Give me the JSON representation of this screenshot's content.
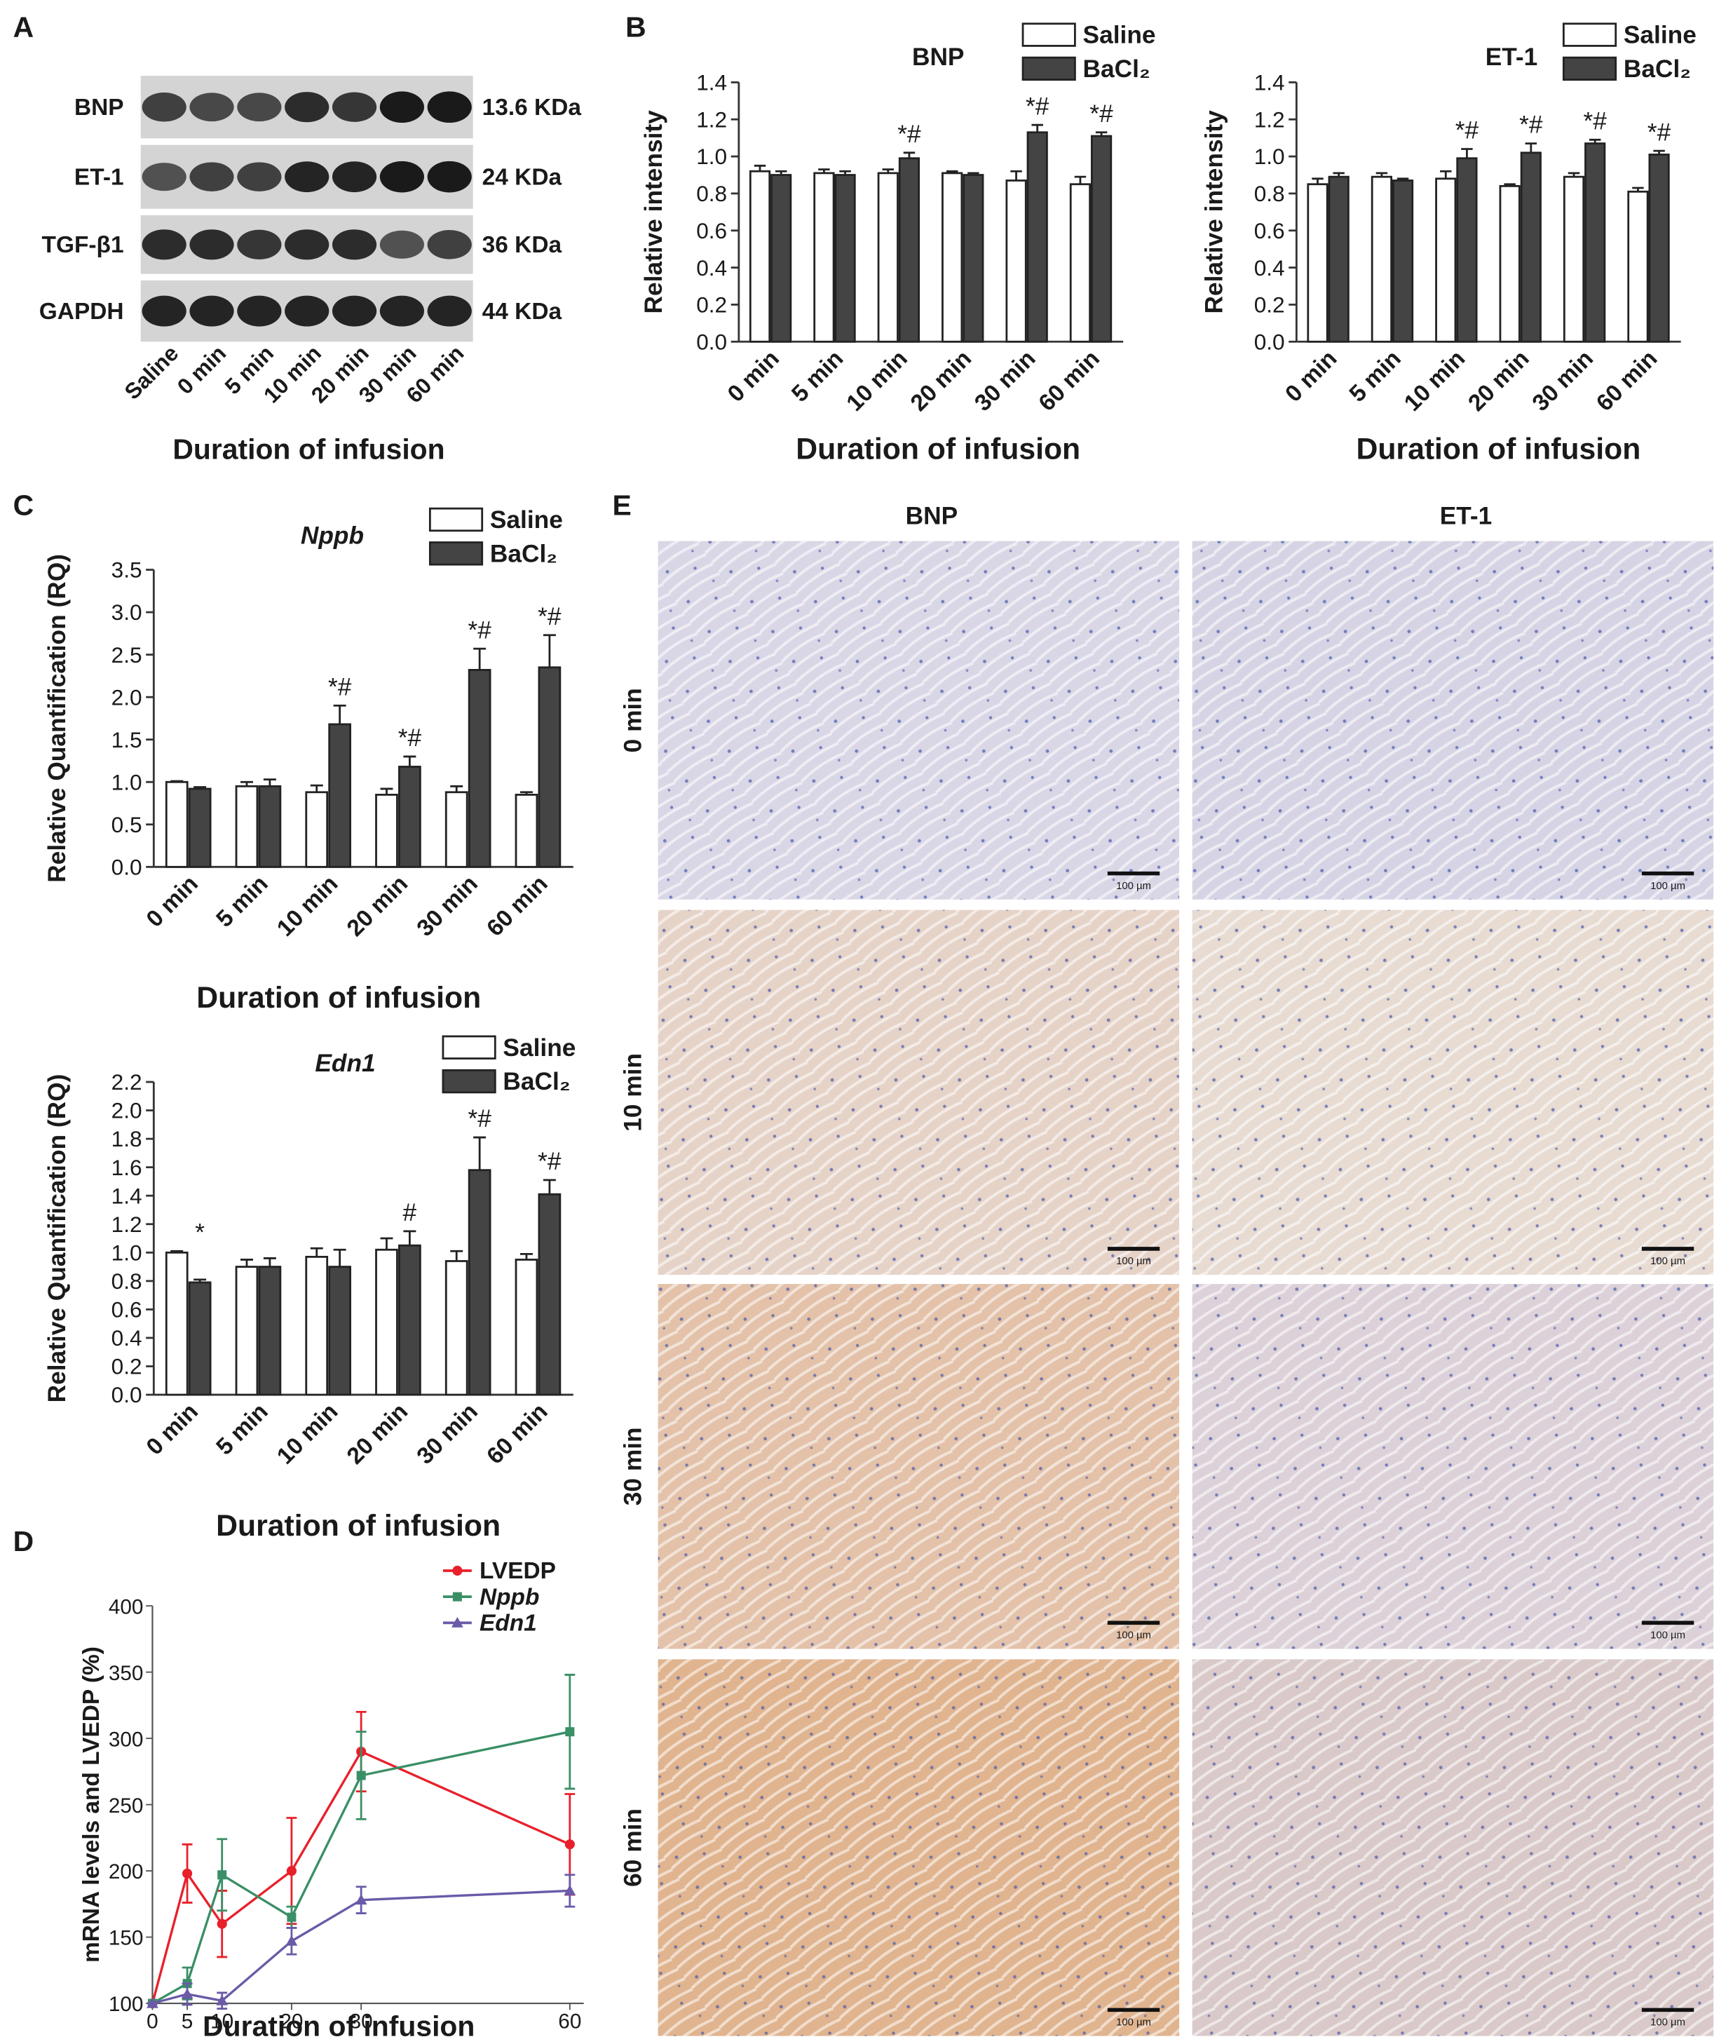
{
  "panel_labels": [
    "A",
    "B",
    "C",
    "D",
    "E"
  ],
  "blot": {
    "proteins": [
      {
        "name": "BNP",
        "size": "13.6 KDa"
      },
      {
        "name": "ET-1",
        "size": "24 KDa"
      },
      {
        "name": "TGF-β1",
        "size": "36 KDa"
      },
      {
        "name": "GAPDH",
        "size": "44 KDa"
      }
    ],
    "lanes": [
      "Saline",
      "0 min",
      "5 min",
      "10 min",
      "20 min",
      "30 min",
      "60 min"
    ],
    "xlabel": "Duration of infusion"
  },
  "chart_data": [
    {
      "type": "bar",
      "title": "BNP",
      "ylabel": "Relative intensity",
      "xlabel": "Duration of infusion",
      "categories": [
        "0 min",
        "5 min",
        "10 min",
        "20 min",
        "30 min",
        "60 min"
      ],
      "series": [
        {
          "name": "Saline",
          "color": "#ffffff",
          "values": [
            0.92,
            0.91,
            0.91,
            0.91,
            0.87,
            0.85
          ],
          "errors": [
            0.03,
            0.02,
            0.02,
            0.01,
            0.05,
            0.04
          ]
        },
        {
          "name": "BaCl₂",
          "color": "#444444",
          "values": [
            0.9,
            0.9,
            0.99,
            0.9,
            1.13,
            1.11
          ],
          "errors": [
            0.02,
            0.02,
            0.03,
            0.01,
            0.04,
            0.02
          ]
        }
      ],
      "ylim": [
        0,
        1.4
      ],
      "yticks": [
        {
          "value": 0,
          "label": "0.0"
        },
        0.2,
        0.4,
        0.6,
        0.8,
        {
          "value": 1,
          "label": "1.0"
        },
        1.2,
        1.4
      ],
      "annotations": [
        {
          "category": "10 min",
          "text": "*#"
        },
        {
          "category": "30 min",
          "text": "*#"
        },
        {
          "category": "60 min",
          "text": "*#"
        }
      ]
    },
    {
      "type": "bar",
      "title": "ET-1",
      "ylabel": "Relative intensity",
      "xlabel": "Duration of infusion",
      "categories": [
        "0 min",
        "5 min",
        "10 min",
        "20 min",
        "30 min",
        "60 min"
      ],
      "series": [
        {
          "name": "Saline",
          "color": "#ffffff",
          "values": [
            0.85,
            0.89,
            0.88,
            0.84,
            0.89,
            0.81
          ],
          "errors": [
            0.03,
            0.02,
            0.04,
            0.01,
            0.02,
            0.02
          ]
        },
        {
          "name": "BaCl₂",
          "color": "#444444",
          "values": [
            0.89,
            0.87,
            0.99,
            1.02,
            1.07,
            1.01
          ],
          "errors": [
            0.02,
            0.01,
            0.05,
            0.05,
            0.02,
            0.02
          ]
        }
      ],
      "ylim": [
        0,
        1.4
      ],
      "yticks": [
        {
          "value": 0,
          "label": "0.0"
        },
        0.2,
        0.4,
        0.6,
        0.8,
        {
          "value": 1,
          "label": "1.0"
        },
        1.2,
        1.4
      ],
      "annotations": [
        {
          "category": "10 min",
          "text": "*#"
        },
        {
          "category": "20 min",
          "text": "*#"
        },
        {
          "category": "30 min",
          "text": "*#"
        },
        {
          "category": "60 min",
          "text": "*#"
        }
      ]
    },
    {
      "type": "bar",
      "title": "Nppb",
      "title_italic": true,
      "ylabel": "Relative Quantification (RQ)",
      "xlabel": "Duration of infusion",
      "categories": [
        "0 min",
        "5 min",
        "10 min",
        "20 min",
        "30 min",
        "60 min"
      ],
      "series": [
        {
          "name": "Saline",
          "color": "#ffffff",
          "values": [
            1.0,
            0.95,
            0.88,
            0.85,
            0.88,
            0.85
          ],
          "errors": [
            0.01,
            0.05,
            0.08,
            0.07,
            0.07,
            0.03
          ]
        },
        {
          "name": "BaCl₂",
          "color": "#444444",
          "values": [
            0.92,
            0.95,
            1.68,
            1.18,
            2.32,
            2.35
          ],
          "errors": [
            0.02,
            0.08,
            0.22,
            0.12,
            0.25,
            0.38
          ]
        }
      ],
      "ylim": [
        0,
        3.5
      ],
      "yticks": [
        {
          "value": 0,
          "label": "0.0"
        },
        0.5,
        {
          "value": 1,
          "label": "1.0"
        },
        1.5,
        {
          "value": 2,
          "label": "2.0"
        },
        2.5,
        {
          "value": 3,
          "label": "3.0"
        },
        3.5
      ],
      "annotations": [
        {
          "category": "10 min",
          "text": "*#"
        },
        {
          "category": "20 min",
          "text": "*#"
        },
        {
          "category": "30 min",
          "text": "*#"
        },
        {
          "category": "60 min",
          "text": "*#"
        }
      ]
    },
    {
      "type": "bar",
      "title": "Edn1",
      "title_italic": true,
      "ylabel": "Relative Quantification (RQ)",
      "xlabel": "Duration of infusion",
      "categories": [
        "0 min",
        "5 min",
        "10 min",
        "20 min",
        "30 min",
        "60 min"
      ],
      "series": [
        {
          "name": "Saline",
          "color": "#ffffff",
          "values": [
            1.0,
            0.9,
            0.97,
            1.02,
            0.94,
            0.95
          ],
          "errors": [
            0.01,
            0.05,
            0.06,
            0.08,
            0.07,
            0.04
          ]
        },
        {
          "name": "BaCl₂",
          "color": "#444444",
          "values": [
            0.79,
            0.9,
            0.9,
            1.05,
            1.58,
            1.41
          ],
          "errors": [
            0.02,
            0.06,
            0.12,
            0.1,
            0.23,
            0.1
          ]
        }
      ],
      "ylim": [
        0,
        2.2
      ],
      "yticks": [
        {
          "value": 0,
          "label": "0.0"
        },
        0.2,
        0.4,
        0.6,
        0.8,
        {
          "value": 1,
          "label": "1.0"
        },
        1.2,
        1.4,
        1.6,
        1.8,
        {
          "value": 2,
          "label": "2.0"
        },
        2.2
      ],
      "annotations": [
        {
          "category": "0 min",
          "text": "*"
        },
        {
          "category": "20 min",
          "text": "#"
        },
        {
          "category": "30 min",
          "text": "*#"
        },
        {
          "category": "60 min",
          "text": "*#"
        }
      ]
    },
    {
      "type": "line",
      "ylabel": "mRNA levels and LVEDP (%)",
      "xlabel": "Duration of infusion",
      "x": [
        0,
        5,
        10,
        20,
        30,
        60
      ],
      "xlim": [
        0,
        62
      ],
      "xticks": [
        0,
        5,
        10,
        20,
        30,
        60
      ],
      "ylim": [
        100,
        400
      ],
      "yticks": [
        100,
        150,
        200,
        250,
        300,
        350,
        400
      ],
      "series": [
        {
          "name": "LVEDP",
          "color": "#e8202a",
          "marker": "circle",
          "values": [
            100,
            198,
            160,
            200,
            290,
            220
          ],
          "errors": [
            0,
            22,
            25,
            40,
            30,
            38
          ]
        },
        {
          "name": "Nppb",
          "italic": true,
          "color": "#3a8f66",
          "marker": "square",
          "values": [
            100,
            115,
            197,
            165,
            272,
            305
          ],
          "errors": [
            0,
            12,
            27,
            8,
            33,
            43
          ]
        },
        {
          "name": "Edn1",
          "italic": true,
          "color": "#6a5aa8",
          "marker": "triangle",
          "values": [
            100,
            107,
            102,
            147,
            178,
            185
          ],
          "errors": [
            0,
            8,
            6,
            10,
            10,
            12
          ]
        }
      ]
    }
  ],
  "histology": {
    "columns": [
      "BNP",
      "ET-1"
    ],
    "rows": [
      "0 min",
      "10 min",
      "30 min",
      "60 min"
    ],
    "scale_bar": "100 µm"
  }
}
